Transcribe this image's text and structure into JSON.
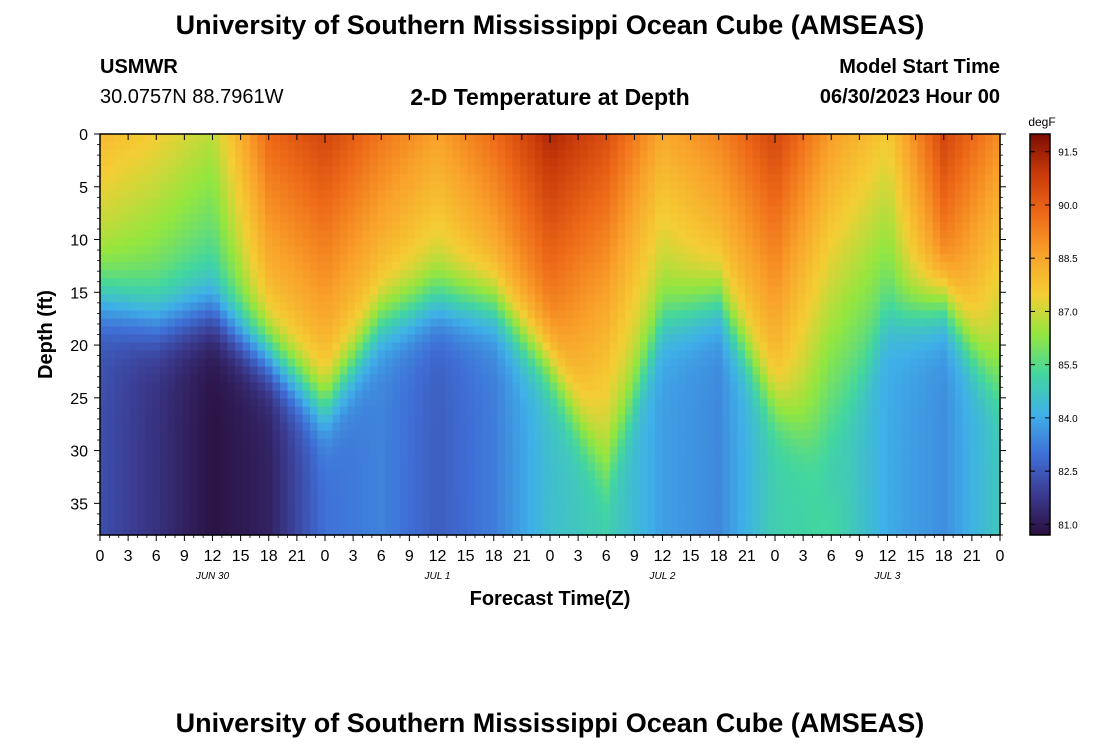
{
  "header": {
    "title": "University of Southern Mississippi Ocean Cube (AMSEAS)",
    "station": "USMWR",
    "location": "30.0757N  88.7961W",
    "plot_title": "2-D Temperature at Depth",
    "model_start_label": "Model Start Time",
    "model_start_value": "06/30/2023 Hour 00"
  },
  "footer": {
    "title": "University of Southern Mississippi Ocean Cube (AMSEAS)"
  },
  "colors": {
    "scale": [
      "#2a0f3d",
      "#3b3a8f",
      "#3f6fd6",
      "#3fb0e8",
      "#42d6a0",
      "#93e63f",
      "#f4ce34",
      "#f9a22a",
      "#ee6a18",
      "#c93a0a",
      "#7d0d02"
    ]
  },
  "chart_data": {
    "type": "heatmap",
    "xlabel": "Forecast Time(Z)",
    "ylabel": "Depth (ft)",
    "x_unit": "hours",
    "xlim": [
      0,
      96
    ],
    "ylim": [
      0,
      38
    ],
    "x_tick_labels": [
      "0",
      "3",
      "6",
      "9",
      "12",
      "15",
      "18",
      "21",
      "0",
      "3",
      "6",
      "9",
      "12",
      "15",
      "18",
      "21",
      "0",
      "3",
      "6",
      "9",
      "12",
      "15",
      "18",
      "21",
      "0",
      "3",
      "6",
      "9",
      "12",
      "15",
      "18",
      "21",
      "0"
    ],
    "y_ticks": [
      0,
      5,
      10,
      15,
      20,
      25,
      30,
      35
    ],
    "date_labels": [
      {
        "label": "JUN 30",
        "hour": 12
      },
      {
        "label": "JUL 1",
        "hour": 36
      },
      {
        "label": "JUL 2",
        "hour": 60
      },
      {
        "label": "JUL 3",
        "hour": 84
      }
    ],
    "colorbar": {
      "unit": "degF",
      "min": 80.7,
      "max": 92.0,
      "ticks": [
        81.0,
        82.5,
        84.0,
        85.5,
        87.0,
        88.5,
        90.0,
        91.5
      ],
      "tick_labels": [
        "81.0",
        "82.5",
        "84.0",
        "85.5",
        "87.0",
        "88.5",
        "90.0",
        "91.5"
      ]
    },
    "surface_temp_profile": [
      {
        "hour": 0,
        "temp": 88.0
      },
      {
        "hour": 6,
        "temp": 87.5
      },
      {
        "hour": 12,
        "temp": 86.8
      },
      {
        "hour": 18,
        "temp": 89.8
      },
      {
        "hour": 24,
        "temp": 90.6
      },
      {
        "hour": 30,
        "temp": 89.5
      },
      {
        "hour": 36,
        "temp": 88.6
      },
      {
        "hour": 42,
        "temp": 89.7
      },
      {
        "hour": 48,
        "temp": 91.3
      },
      {
        "hour": 54,
        "temp": 90.4
      },
      {
        "hour": 60,
        "temp": 88.4
      },
      {
        "hour": 66,
        "temp": 89.2
      },
      {
        "hour": 72,
        "temp": 90.6
      },
      {
        "hour": 78,
        "temp": 88.7
      },
      {
        "hour": 84,
        "temp": 87.6
      },
      {
        "hour": 90,
        "temp": 90.6
      },
      {
        "hour": 96,
        "temp": 89.0
      }
    ],
    "thermocline_depth_profile": [
      {
        "hour": 0,
        "depth": 16
      },
      {
        "hour": 6,
        "depth": 18
      },
      {
        "hour": 12,
        "depth": 17
      },
      {
        "hour": 18,
        "depth": 21
      },
      {
        "hour": 24,
        "depth": 26
      },
      {
        "hour": 30,
        "depth": 18
      },
      {
        "hour": 36,
        "depth": 16
      },
      {
        "hour": 42,
        "depth": 16.5
      },
      {
        "hour": 48,
        "depth": 22
      },
      {
        "hour": 54,
        "depth": 33
      },
      {
        "hour": 60,
        "depth": 18
      },
      {
        "hour": 66,
        "depth": 16
      },
      {
        "hour": 72,
        "depth": 26
      },
      {
        "hour": 78,
        "depth": 33
      },
      {
        "hour": 84,
        "depth": 18
      },
      {
        "hour": 90,
        "depth": 16
      },
      {
        "hour": 96,
        "depth": 25
      }
    ],
    "bottom_temp_profile": [
      {
        "hour": 0,
        "temp": 82.3
      },
      {
        "hour": 6,
        "temp": 81.6
      },
      {
        "hour": 12,
        "temp": 80.8
      },
      {
        "hour": 18,
        "temp": 81.2
      },
      {
        "hour": 24,
        "temp": 83.0
      },
      {
        "hour": 30,
        "temp": 83.3
      },
      {
        "hour": 36,
        "temp": 82.6
      },
      {
        "hour": 42,
        "temp": 83.2
      },
      {
        "hour": 48,
        "temp": 84.5
      },
      {
        "hour": 54,
        "temp": 85.0
      },
      {
        "hour": 60,
        "temp": 83.8
      },
      {
        "hour": 66,
        "temp": 83.4
      },
      {
        "hour": 72,
        "temp": 85.0
      },
      {
        "hour": 78,
        "temp": 85.3
      },
      {
        "hour": 84,
        "temp": 84.0
      },
      {
        "hour": 90,
        "temp": 83.5
      },
      {
        "hour": 96,
        "temp": 84.8
      }
    ]
  }
}
